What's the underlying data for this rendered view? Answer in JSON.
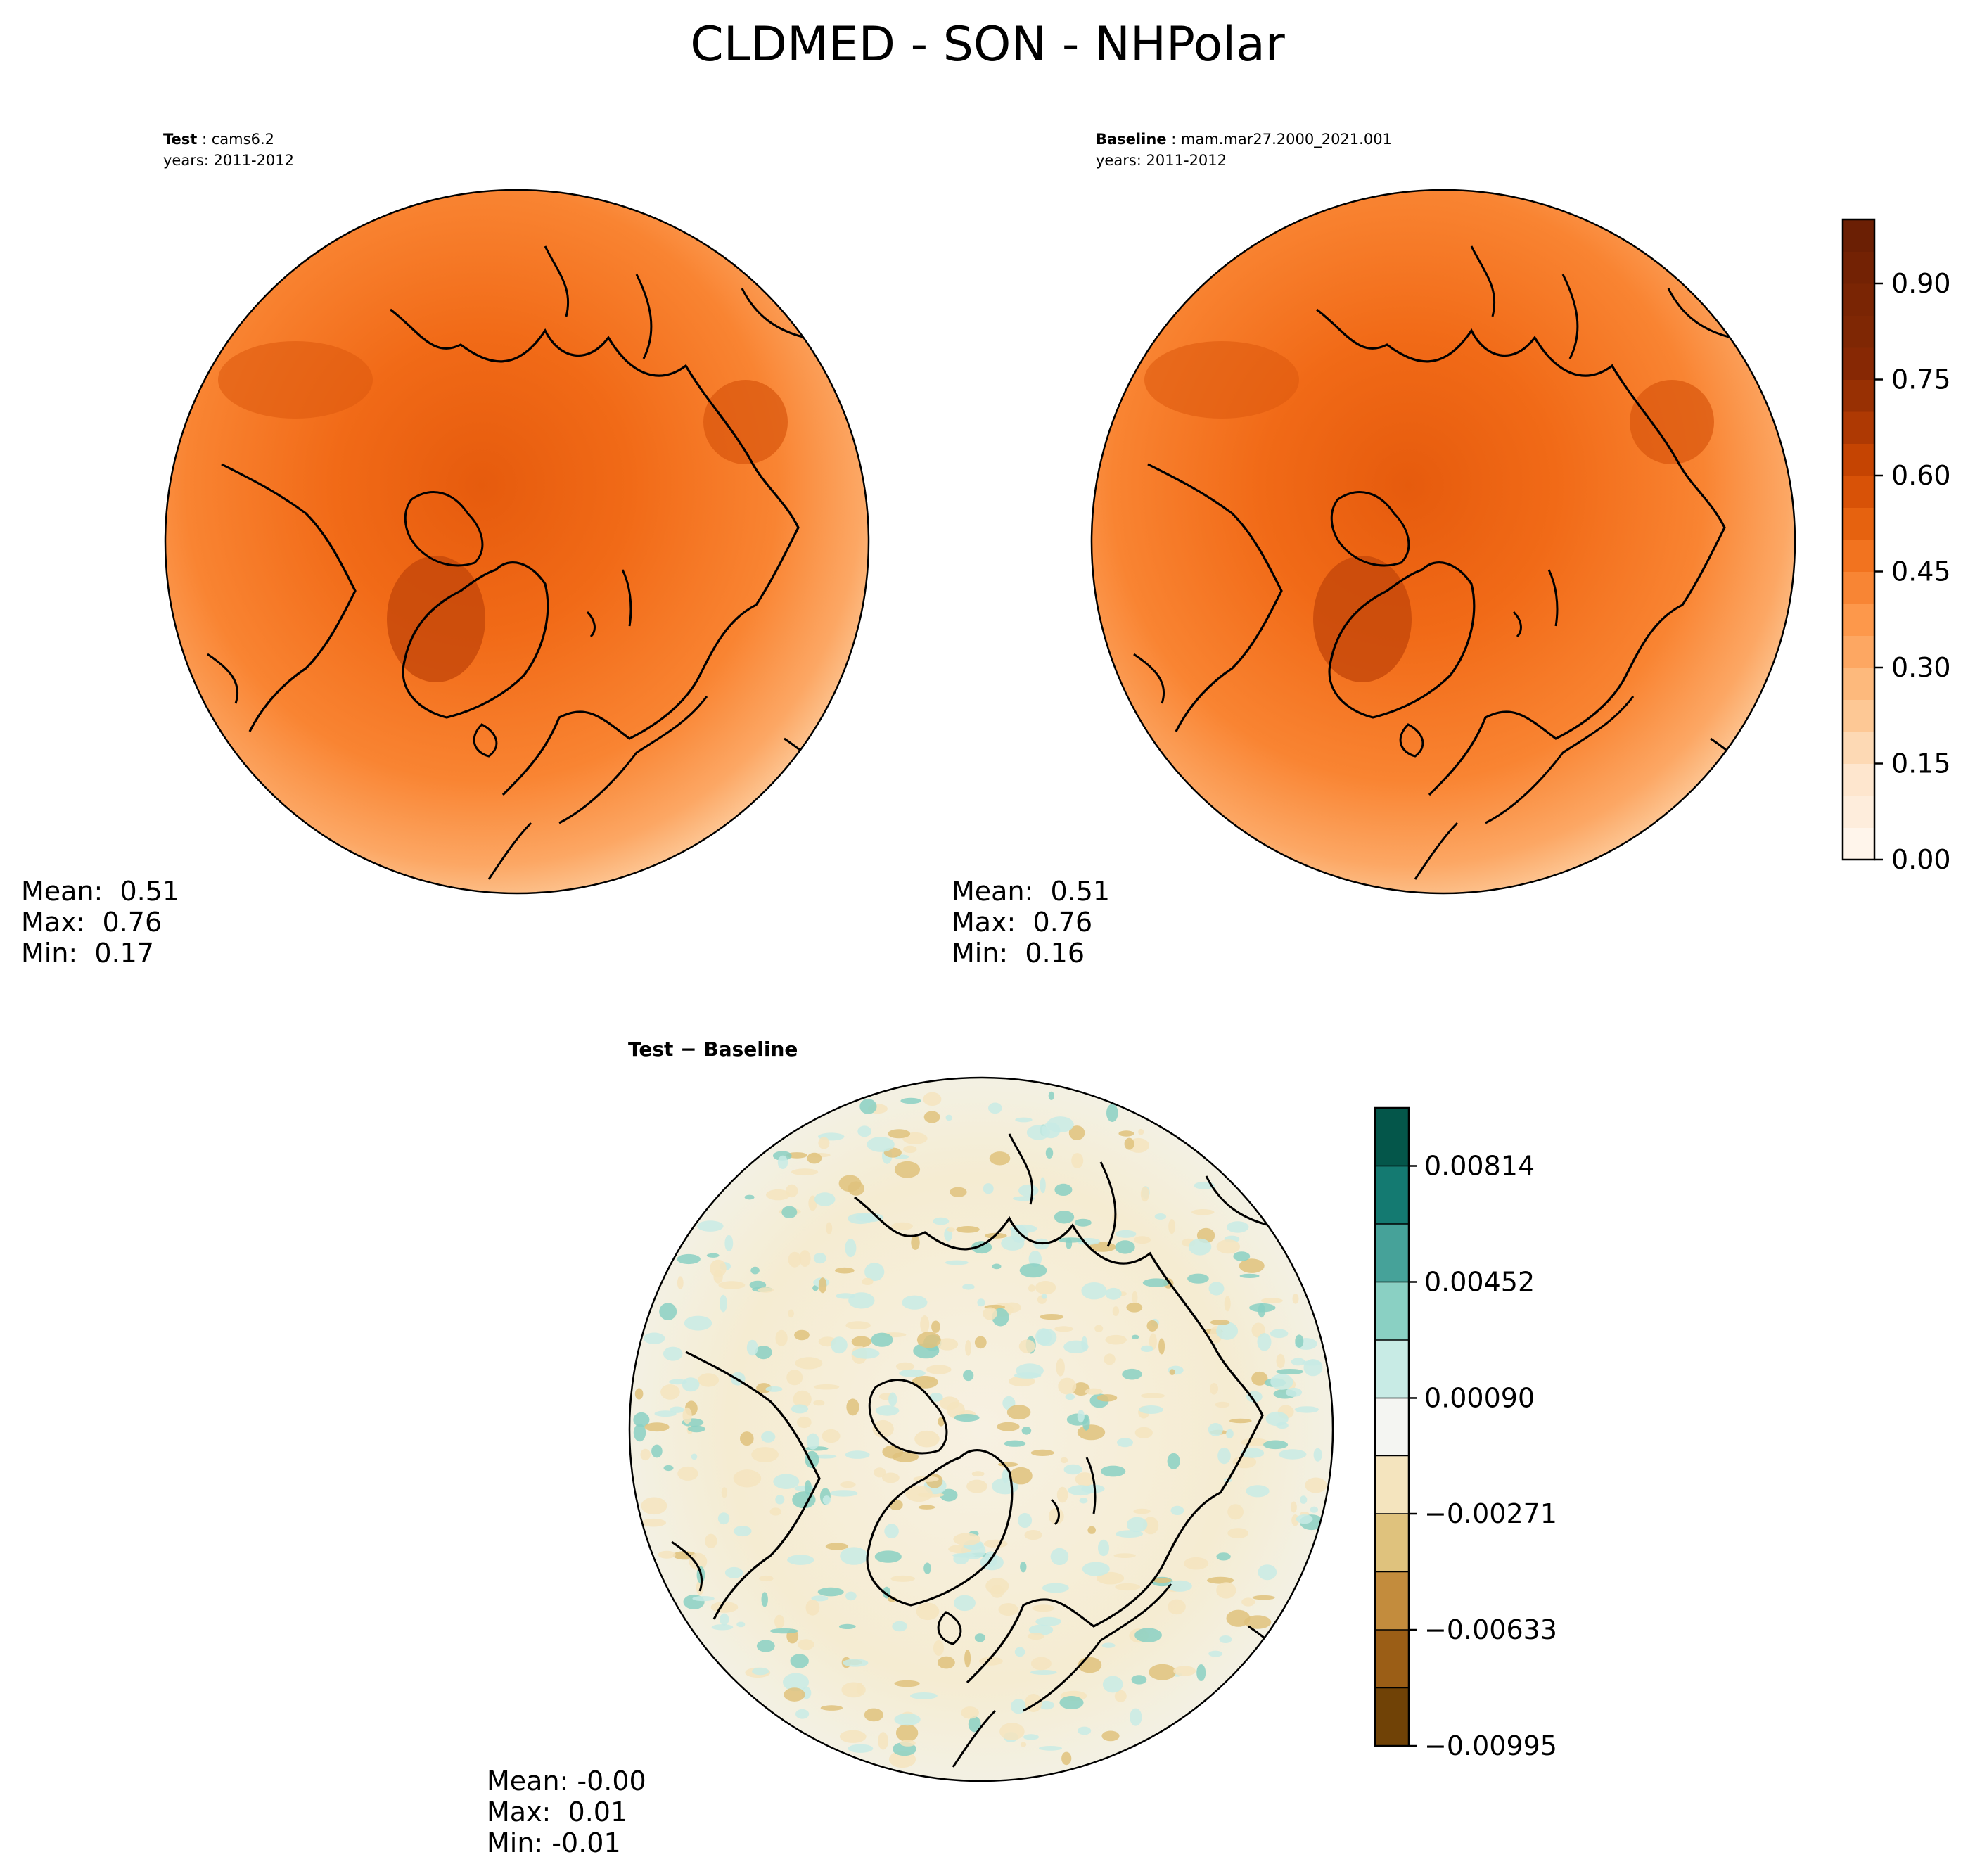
{
  "figure": {
    "title": "CLDMED - SON - NHPolar"
  },
  "panels": {
    "test": {
      "case_label": "Test",
      "case_name": "cams6.2",
      "years": "years: 2011-2012",
      "stats": {
        "mean": "Mean:  0.51",
        "max": "Max:  0.76",
        "min": "Min:  0.17"
      }
    },
    "baseline": {
      "case_label": "Baseline",
      "case_name": "mam.mar27.2000_2021.001",
      "years": "years: 2011-2012",
      "stats": {
        "mean": "Mean:  0.51",
        "max": "Max:  0.76",
        "min": "Min:  0.16"
      }
    },
    "difference": {
      "title": "Test − Baseline",
      "stats": {
        "mean": "Mean: -0.00",
        "max": "Max:  0.01",
        "min": "Min: -0.01"
      }
    }
  },
  "chart_data": [
    {
      "type": "heatmap",
      "projection": "north-polar-stereographic",
      "panel": "test",
      "colormap": "Oranges",
      "vmin": 0.0,
      "vmax": 1.0,
      "stats": {
        "mean": 0.51,
        "max": 0.76,
        "min": 0.17
      }
    },
    {
      "type": "heatmap",
      "projection": "north-polar-stereographic",
      "panel": "baseline",
      "colormap": "Oranges",
      "vmin": 0.0,
      "vmax": 1.0,
      "stats": {
        "mean": 0.51,
        "max": 0.76,
        "min": 0.16
      },
      "colorbar": {
        "ticks": [
          0.0,
          0.15,
          0.3,
          0.45,
          0.6,
          0.75,
          0.9
        ],
        "tick_labels": [
          "0.00",
          "0.15",
          "0.30",
          "0.45",
          "0.60",
          "0.75",
          "0.90"
        ],
        "levels": 20,
        "colors": [
          "#fff5eb",
          "#feeddc",
          "#fee6ce",
          "#fdd9b4",
          "#fdc895",
          "#fdb97c",
          "#fda762",
          "#fd984b",
          "#f88534",
          "#f2731f",
          "#e6620f",
          "#d85207",
          "#c54402",
          "#ae3903",
          "#983003",
          "#872804",
          "#7f2704",
          "#7a2504",
          "#732204",
          "#6b1f04"
        ]
      }
    },
    {
      "type": "heatmap",
      "projection": "north-polar-stereographic",
      "panel": "difference",
      "colormap": "BrBG",
      "stats": {
        "mean": -0.0,
        "max": 0.01,
        "min": -0.01
      },
      "colorbar": {
        "levels": [
          -0.00995,
          -0.00814,
          -0.00633,
          -0.00452,
          -0.00271,
          -0.0009,
          0.0009,
          0.00271,
          0.00452,
          0.00633,
          0.00814,
          0.00995
        ],
        "tick_values": [
          -0.00995,
          -0.00633,
          -0.00271,
          0.0009,
          0.00452,
          0.00814
        ],
        "tick_labels": [
          "−0.00995",
          "−0.00633",
          "−0.00271",
          "0.00090",
          "0.00452",
          "0.00814"
        ],
        "colors": [
          "#704206",
          "#9b5e16",
          "#c38c3d",
          "#dfc27d",
          "#f4e4be",
          "#f4f5f2",
          "#c8ebe5",
          "#8ad0c3",
          "#46a299",
          "#147a71",
          "#04564a"
        ]
      }
    }
  ]
}
